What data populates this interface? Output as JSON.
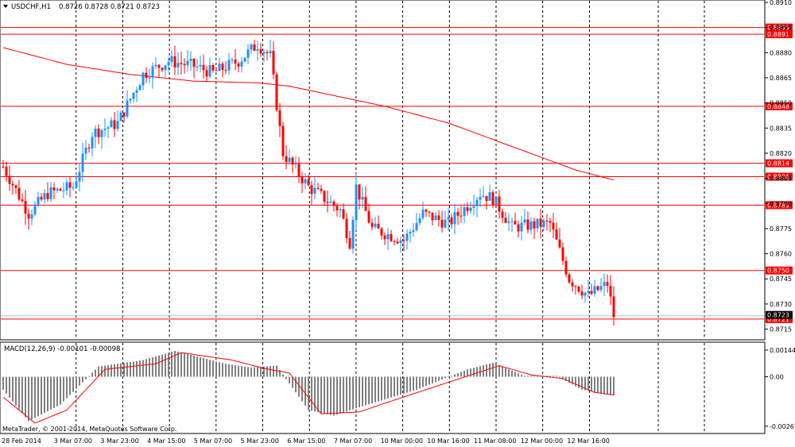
{
  "header": {
    "symbol": "USDCHF,H1",
    "ohlc": "0.8726 0.8728 0.8721 0.8723"
  },
  "macd_header": "MACD(12,26,9) -0.00101 -0.00098",
  "watermark": "MetaTrader, © 2001-2014, MetaQuotes Software Corp.",
  "colors": {
    "background": "#ffffff",
    "bull": "#1e90ff",
    "bear": "#ff0000",
    "grid": "#000000",
    "level": "#ff0000",
    "ma": "#ff0000",
    "histogram": "#808080",
    "signal": "#ff0000"
  },
  "chart_data": {
    "type": "candlestick",
    "price_axis": {
      "ticks": [
        "0.8910",
        "0.8895",
        "0.8880",
        "0.8865",
        "0.8850",
        "0.8835",
        "0.8820",
        "0.8805",
        "0.8790",
        "0.8775",
        "0.8760",
        "0.8745",
        "0.8730",
        "0.8715"
      ],
      "range": [
        0.8711,
        0.891
      ]
    },
    "time_axis": {
      "labels": [
        "28 Feb 2014",
        "3 Mar 07:00",
        "3 Mar 23:00",
        "4 Mar 15:00",
        "5 Mar 07:00",
        "5 Mar 23:00",
        "6 Mar 15:00",
        "7 Mar 07:00",
        "10 Mar 00:00",
        "10 Mar 16:00",
        "11 Mar 08:00",
        "12 Mar 00:00",
        "12 Mar 16:00"
      ]
    },
    "levels": [
      {
        "label": "0.8895",
        "value": 0.8895
      },
      {
        "label": "0.8891",
        "value": 0.8891
      },
      {
        "label": "0.8848",
        "value": 0.8848
      },
      {
        "label": "0.8814",
        "value": 0.8814
      },
      {
        "label": "0.8806",
        "value": 0.8806
      },
      {
        "label": "0.8789",
        "value": 0.8789
      },
      {
        "label": "0.8750",
        "value": 0.875
      },
      {
        "label": "0.8721",
        "value": 0.8721
      }
    ],
    "current_price": {
      "label": "0.8723",
      "value": 0.8723
    },
    "keypoints": [
      {
        "i": 0,
        "p": 0.8812
      },
      {
        "i": 8,
        "p": 0.8784
      },
      {
        "i": 14,
        "p": 0.8796
      },
      {
        "i": 22,
        "p": 0.88
      },
      {
        "i": 28,
        "p": 0.8832
      },
      {
        "i": 36,
        "p": 0.8838
      },
      {
        "i": 44,
        "p": 0.8867
      },
      {
        "i": 52,
        "p": 0.8875
      },
      {
        "i": 60,
        "p": 0.8872
      },
      {
        "i": 66,
        "p": 0.8868
      },
      {
        "i": 74,
        "p": 0.8875
      },
      {
        "i": 80,
        "p": 0.8885
      },
      {
        "i": 84,
        "p": 0.8878
      },
      {
        "i": 88,
        "p": 0.882
      },
      {
        "i": 96,
        "p": 0.88
      },
      {
        "i": 106,
        "p": 0.8786
      },
      {
        "i": 109,
        "p": 0.8767
      },
      {
        "i": 111,
        "p": 0.88
      },
      {
        "i": 116,
        "p": 0.8775
      },
      {
        "i": 126,
        "p": 0.8768
      },
      {
        "i": 132,
        "p": 0.8784
      },
      {
        "i": 140,
        "p": 0.8778
      },
      {
        "i": 150,
        "p": 0.8796
      },
      {
        "i": 154,
        "p": 0.8793
      },
      {
        "i": 160,
        "p": 0.8776
      },
      {
        "i": 172,
        "p": 0.8778
      },
      {
        "i": 178,
        "p": 0.8745
      },
      {
        "i": 184,
        "p": 0.8735
      },
      {
        "i": 190,
        "p": 0.8742
      },
      {
        "i": 192,
        "p": 0.8723
      }
    ],
    "moving_average": [
      {
        "i": 0,
        "p": 0.8883
      },
      {
        "i": 20,
        "p": 0.8873
      },
      {
        "i": 40,
        "p": 0.8867
      },
      {
        "i": 60,
        "p": 0.8863
      },
      {
        "i": 80,
        "p": 0.8862
      },
      {
        "i": 90,
        "p": 0.886
      },
      {
        "i": 120,
        "p": 0.8848
      },
      {
        "i": 140,
        "p": 0.8838
      },
      {
        "i": 160,
        "p": 0.8824
      },
      {
        "i": 180,
        "p": 0.881
      },
      {
        "i": 192,
        "p": 0.8804
      }
    ],
    "macd": {
      "ticks": [
        "0.00144",
        "0.00",
        "-0.00267"
      ],
      "range": [
        -0.00285,
        0.00165
      ],
      "histogram_keypoints": [
        {
          "i": 0,
          "v": -0.0007
        },
        {
          "i": 8,
          "v": -0.0024
        },
        {
          "i": 18,
          "v": -0.0015
        },
        {
          "i": 30,
          "v": 0.00055
        },
        {
          "i": 44,
          "v": 0.0009
        },
        {
          "i": 54,
          "v": 0.0014
        },
        {
          "i": 70,
          "v": 0.0007
        },
        {
          "i": 78,
          "v": 0.0005
        },
        {
          "i": 86,
          "v": 0.0006
        },
        {
          "i": 96,
          "v": -0.0018
        },
        {
          "i": 104,
          "v": -0.0021
        },
        {
          "i": 112,
          "v": -0.00165
        },
        {
          "i": 130,
          "v": -0.0007
        },
        {
          "i": 146,
          "v": 0.0004
        },
        {
          "i": 154,
          "v": 0.00075
        },
        {
          "i": 164,
          "v": 5e-05
        },
        {
          "i": 174,
          "v": 5e-05
        },
        {
          "i": 182,
          "v": -0.0007
        },
        {
          "i": 192,
          "v": -0.00101
        }
      ],
      "signal_keypoints": [
        {
          "i": 0,
          "v": -0.0011
        },
        {
          "i": 10,
          "v": -0.0025
        },
        {
          "i": 20,
          "v": -0.0018
        },
        {
          "i": 32,
          "v": 0.0004
        },
        {
          "i": 48,
          "v": 0.0007
        },
        {
          "i": 56,
          "v": 0.0013
        },
        {
          "i": 72,
          "v": 0.0009
        },
        {
          "i": 82,
          "v": 0.00045
        },
        {
          "i": 90,
          "v": 0.0002
        },
        {
          "i": 100,
          "v": -0.002
        },
        {
          "i": 112,
          "v": -0.0019
        },
        {
          "i": 124,
          "v": -0.0012
        },
        {
          "i": 140,
          "v": -0.0003
        },
        {
          "i": 156,
          "v": 0.0006
        },
        {
          "i": 166,
          "v": 0.0001
        },
        {
          "i": 176,
          "v": -0.0001
        },
        {
          "i": 186,
          "v": -0.00085
        },
        {
          "i": 192,
          "v": -0.00098
        }
      ]
    }
  }
}
